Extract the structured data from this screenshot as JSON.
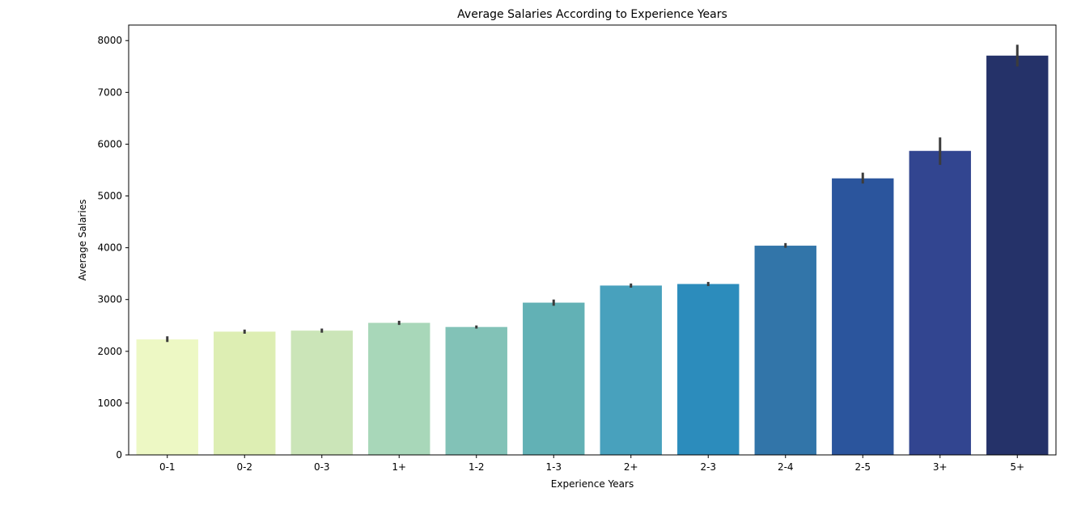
{
  "chart_data": {
    "type": "bar",
    "title": "Average Salaries According to Experience Years",
    "xlabel": "Experience Years",
    "ylabel": "Average Salaries",
    "categories": [
      "0-1",
      "0-2",
      "0-3",
      "1+",
      "1-2",
      "1-3",
      "2+",
      "2-3",
      "2-4",
      "2-5",
      "3+",
      "5+"
    ],
    "values": [
      2230,
      2380,
      2400,
      2550,
      2470,
      2940,
      3270,
      3300,
      4040,
      5340,
      5870,
      7710
    ],
    "error_low": [
      2180,
      2340,
      2360,
      2510,
      2440,
      2880,
      3230,
      3260,
      4000,
      5240,
      5600,
      7500
    ],
    "error_high": [
      2290,
      2420,
      2440,
      2590,
      2500,
      3000,
      3310,
      3340,
      4090,
      5450,
      6130,
      7920
    ],
    "colors": [
      "#edf8c4",
      "#ddeeb3",
      "#cbe5b8",
      "#a8d7b9",
      "#82c2b7",
      "#62b1b5",
      "#48a1bd",
      "#2c8cbc",
      "#3275a9",
      "#2b559d",
      "#324590",
      "#253269"
    ],
    "error_bar_color": "#3c3c3c",
    "ylim": [
      0,
      8300
    ],
    "yticks": [
      0,
      1000,
      2000,
      3000,
      4000,
      5000,
      6000,
      7000,
      8000
    ],
    "grid": false,
    "legend": "none"
  }
}
